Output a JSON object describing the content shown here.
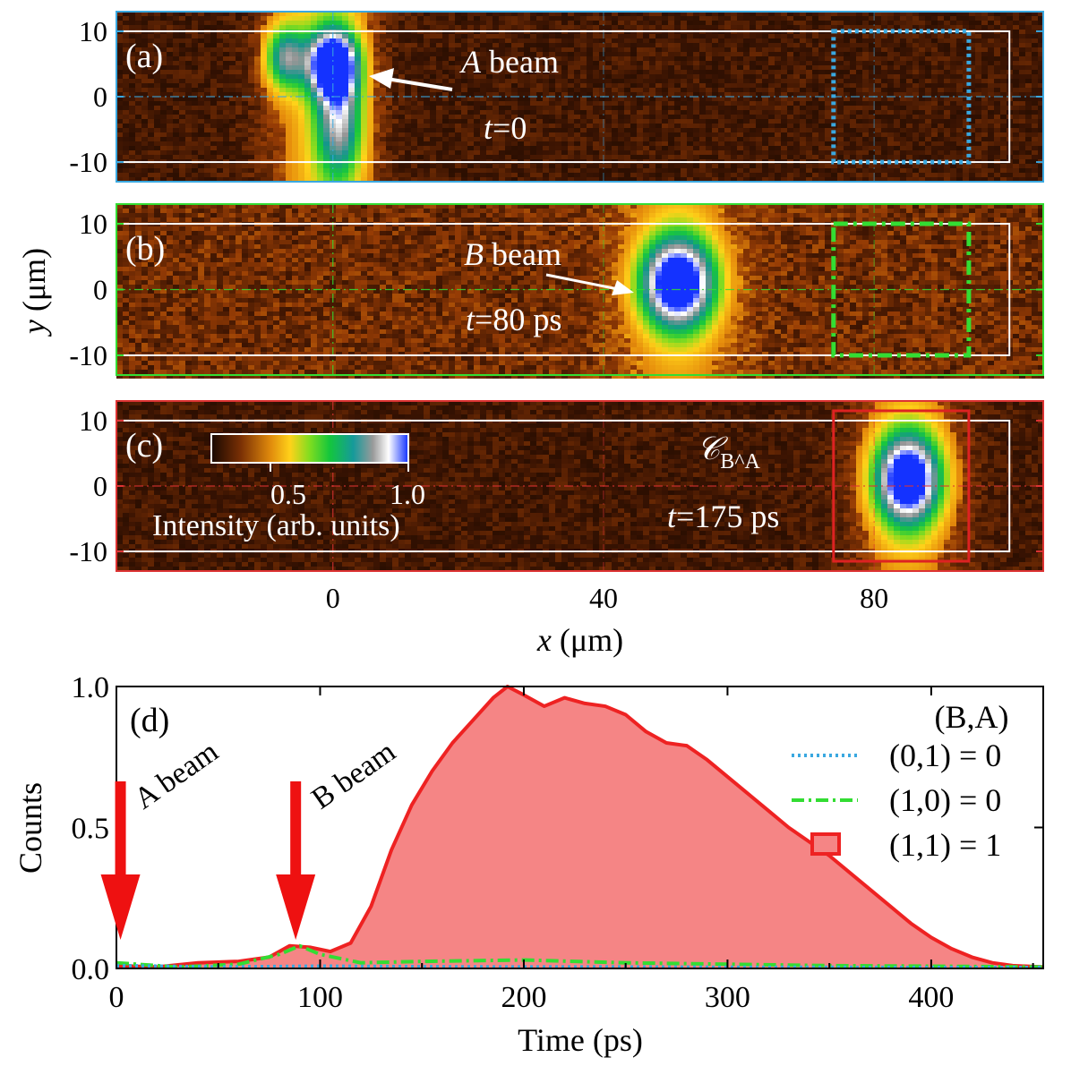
{
  "chart_data": [
    {
      "type": "heatmap",
      "panel": "(a)",
      "frame_color": "#3aa8e0",
      "annotations": [
        "A beam",
        "t=0"
      ],
      "beam_label_italic": "A",
      "beam_label_rest": " beam",
      "time_italic": "t",
      "time_rest": "=0",
      "x_range": [
        -32,
        105
      ],
      "y_range": [
        -13,
        13
      ],
      "ytick_labels": [
        "10",
        "0",
        "-10"
      ],
      "yticks": [
        10,
        0,
        -10
      ],
      "spots": [
        {
          "x": 0,
          "y": 5,
          "sx": 2.5,
          "sy": 3.5,
          "peak": 1.0
        },
        {
          "x": -7,
          "y": 6,
          "sx": 2.2,
          "sy": 3.5,
          "peak": 0.55
        },
        {
          "x": 1,
          "y": -4,
          "sx": 2.5,
          "sy": 6,
          "peak": 0.5
        }
      ],
      "roi_box_dashed": {
        "x0": 74,
        "x1": 94,
        "y0": -10,
        "y1": 10,
        "style": "dotted"
      }
    },
    {
      "type": "heatmap",
      "panel": "(b)",
      "frame_color": "#33dd33",
      "annotations": [
        "B beam",
        "t=80 ps"
      ],
      "beam_label_italic": "B",
      "beam_label_rest": " beam",
      "time_italic": "t",
      "time_rest": "=80 ps",
      "x_range": [
        -32,
        105
      ],
      "y_range": [
        -13,
        13
      ],
      "ytick_labels": [
        "10",
        "0",
        "-10"
      ],
      "yticks": [
        10,
        0,
        -10
      ],
      "spots": [
        {
          "x": 51,
          "y": 1,
          "sx": 4,
          "sy": 5,
          "peak": 1.0
        }
      ],
      "roi_box_dashed": {
        "x0": 74,
        "x1": 94,
        "y0": -10,
        "y1": 10,
        "style": "dash-dot"
      }
    },
    {
      "type": "heatmap",
      "panel": "(c)",
      "frame_color": "#dd3333",
      "annotations": [
        "𝒞B^A",
        "t=175 ps"
      ],
      "script_label": "𝒞",
      "script_sub": "B^A",
      "time_italic": "t",
      "time_rest": "=175 ps",
      "x_range": [
        -32,
        105
      ],
      "y_range": [
        -13,
        13
      ],
      "ytick_labels": [
        "10",
        "0",
        "-10"
      ],
      "yticks": [
        10,
        0,
        -10
      ],
      "xtick_labels": [
        "0",
        "40",
        "80"
      ],
      "xticks": [
        0,
        40,
        80
      ],
      "xlabel_italic": "x",
      "xlabel_rest": " (μm)",
      "spots": [
        {
          "x": 85,
          "y": 1,
          "sx": 3.5,
          "sy": 5,
          "peak": 1.0
        }
      ],
      "roi_box_solid": {
        "x0": 74,
        "x1": 94,
        "y0": -11.5,
        "y1": 11.5
      },
      "colorbar": {
        "ticks": [
          0.5,
          1.0
        ],
        "tick_labels": [
          "0.5",
          "1.0"
        ],
        "label": "Intensity (arb. units)"
      }
    },
    {
      "type": "area",
      "panel": "(d)",
      "xlabel": "Time (ps)",
      "ylabel": "Counts",
      "xlim": [
        0,
        455
      ],
      "ylim": [
        0,
        1.0
      ],
      "xticks": [
        0,
        100,
        200,
        300,
        400
      ],
      "xtick_labels": [
        "0",
        "100",
        "200",
        "300",
        "400"
      ],
      "yticks": [
        0.0,
        0.5,
        1.0
      ],
      "ytick_labels": [
        "0.0",
        "0.5",
        "1.0"
      ],
      "legend_title": "(B,A)",
      "series": [
        {
          "name": "(0,1) = 0",
          "style": "dotted",
          "color": "#3aa8e0",
          "x": [
            0,
            50,
            100,
            150,
            200,
            250,
            300,
            350,
            400,
            455
          ],
          "y": [
            0.01,
            0.005,
            0.008,
            0.006,
            0.005,
            0.005,
            0.004,
            0.004,
            0.003,
            0.003
          ]
        },
        {
          "name": "(1,0) = 0",
          "style": "dash-dot",
          "color": "#33dd33",
          "x": [
            0,
            30,
            60,
            80,
            90,
            100,
            120,
            150,
            200,
            250,
            300,
            350,
            400,
            455
          ],
          "y": [
            0.02,
            0.005,
            0.015,
            0.05,
            0.08,
            0.05,
            0.02,
            0.025,
            0.03,
            0.02,
            0.015,
            0.01,
            0.008,
            0.005
          ]
        },
        {
          "name": "(1,1) = 1",
          "style": "filled",
          "color": "#ee2222",
          "fill": "#f58585",
          "x": [
            0,
            20,
            40,
            60,
            75,
            85,
            95,
            105,
            115,
            125,
            135,
            145,
            155,
            165,
            175,
            185,
            192,
            200,
            210,
            220,
            230,
            240,
            250,
            260,
            270,
            280,
            290,
            300,
            310,
            320,
            330,
            340,
            350,
            360,
            370,
            380,
            390,
            400,
            410,
            420,
            430,
            440,
            455
          ],
          "y": [
            0.01,
            0.005,
            0.02,
            0.025,
            0.04,
            0.08,
            0.075,
            0.06,
            0.09,
            0.22,
            0.42,
            0.58,
            0.7,
            0.8,
            0.88,
            0.96,
            1.0,
            0.97,
            0.93,
            0.96,
            0.94,
            0.93,
            0.9,
            0.84,
            0.8,
            0.79,
            0.74,
            0.68,
            0.62,
            0.56,
            0.5,
            0.45,
            0.4,
            0.34,
            0.28,
            0.22,
            0.16,
            0.11,
            0.07,
            0.04,
            0.02,
            0.01,
            0.005
          ]
        }
      ],
      "arrows": [
        {
          "label": "A beam",
          "at_time": 2
        },
        {
          "label": "B beam",
          "at_time": 88
        }
      ]
    }
  ]
}
